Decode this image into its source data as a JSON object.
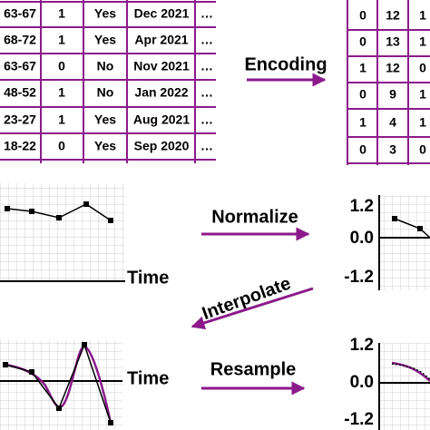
{
  "left_table": {
    "rows": [
      [
        "63-67",
        "1",
        "Yes",
        "Dec 2021",
        "…"
      ],
      [
        "68-72",
        "1",
        "Yes",
        "Apr 2021",
        "…"
      ],
      [
        "63-67",
        "0",
        "No",
        "Nov 2021",
        "…"
      ],
      [
        "48-52",
        "1",
        "No",
        "Jan 2022",
        "…"
      ],
      [
        "23-27",
        "1",
        "Yes",
        "Aug 2021",
        "…"
      ],
      [
        "18-22",
        "0",
        "Yes",
        "Sep 2020",
        "…"
      ]
    ]
  },
  "right_table": {
    "rows": [
      [
        0,
        12,
        1
      ],
      [
        0,
        13,
        1
      ],
      [
        1,
        12,
        0
      ],
      [
        0,
        9,
        1
      ],
      [
        1,
        4,
        1
      ],
      [
        0,
        3,
        0
      ]
    ]
  },
  "steps": {
    "encoding": "Encoding",
    "normalize": "Normalize",
    "interpolate": "Interpolate",
    "resample": "Resample"
  },
  "plots": {
    "raw": {
      "x_label": "Time"
    },
    "normalized": {
      "y_ticks": [
        "1.2",
        "0.0",
        "-1.2"
      ]
    },
    "interpolated": {
      "x_label": "Time"
    },
    "resampled": {
      "y_ticks": [
        "1.2",
        "0.0",
        "-1.2"
      ]
    }
  }
}
